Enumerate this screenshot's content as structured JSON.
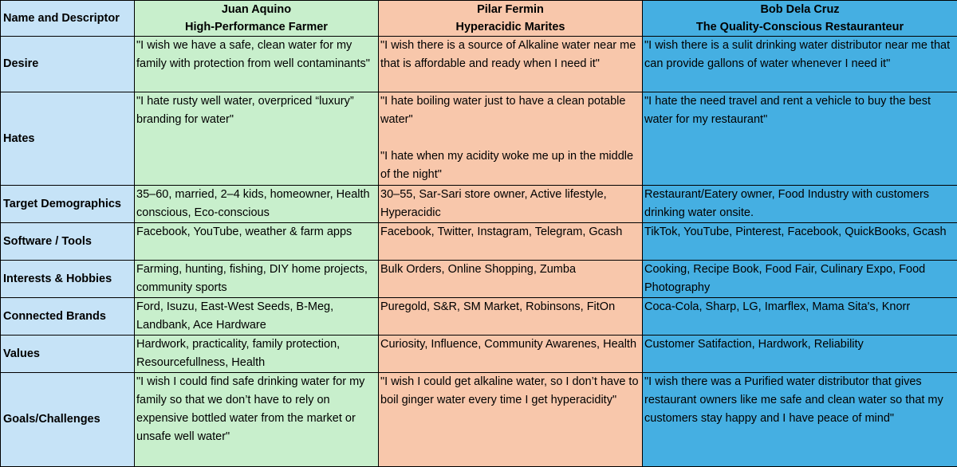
{
  "header": {
    "label": "Name and Descriptor",
    "personas": [
      {
        "name": "Juan Aquino",
        "descriptor": "High-Performance Farmer"
      },
      {
        "name": "Pilar Fermin",
        "descriptor": "Hyperacidic Marites"
      },
      {
        "name": "Bob Dela Cruz",
        "descriptor": "The Quality-Conscious Restauranteur"
      }
    ]
  },
  "colors": {
    "name_column": "#c6e3f7",
    "juan_column": "#c8efcc",
    "pilar_column": "#f8c7ab",
    "bob_column": "#45afe2"
  },
  "rows": {
    "desire": {
      "label": "Desire",
      "juan": "\"I wish we have a safe, clean water for my family  with protection from well contaminants\"",
      "pilar": "\"I wish there is a source of Alkaline water near me that is affordable and ready when I need it\"",
      "bob": "\"I wish there is a sulit drinking water distributor near me that can provide gallons of water whenever I need it\""
    },
    "hates": {
      "label": "Hates",
      "juan": "\"I hate rusty well water, overpriced “luxury” branding for water\"",
      "pilar_1": "\"I hate boiling water just to have a clean potable water\"",
      "pilar_2": "\"I hate when my acidity woke me up in the middle of the night\"",
      "bob": "\"I hate the need travel and rent a vehicle to buy the best water for my restaurant\""
    },
    "demographics": {
      "label": "Target Demographics",
      "juan": "35–60, married, 2–4 kids, homeowner, Health conscious, Eco-conscious",
      "pilar": "30–55, Sar-Sari store owner, Active lifestyle, Hyperacidic",
      "bob": "Restaurant/Eatery owner, Food Industry with customers drinking water onsite."
    },
    "software": {
      "label": "Software / Tools",
      "juan": "Facebook, YouTube, weather & farm apps",
      "pilar": "Facebook, Twitter, Instagram, Telegram, Gcash",
      "bob": "TikTok, YouTube, Pinterest, Facebook, QuickBooks, Gcash"
    },
    "interests": {
      "label": "Interests & Hobbies",
      "juan": "Farming, hunting, fishing, DIY home projects, community sports",
      "pilar": "Bulk Orders, Online Shopping, Zumba",
      "bob": "Cooking, Recipe Book, Food Fair, Culinary Expo, Food Photography"
    },
    "brands": {
      "label": "Connected Brands",
      "juan": "Ford, Isuzu, East-West Seeds, B-Meg, Landbank, Ace Hardware",
      "pilar": "Puregold, S&R, SM Market, Robinsons, FitOn",
      "bob": "Coca-Cola, Sharp, LG, Imarflex, Mama Sita's, Knorr"
    },
    "values": {
      "label": "Values",
      "juan": "Hardwork, practicality, family protection, Resourcefullness, Health",
      "pilar": "Curiosity, Influence, Community Awarenes, Health",
      "bob": "Customer Satifaction, Hardwork, Reliability"
    },
    "goals": {
      "label": "Goals/Challenges",
      "juan": "\"I wish I could find safe drinking water for my family so that we don’t have to rely on expensive bottled water from the market or unsafe well water\"",
      "pilar": "\"I wish I could get alkaline water, so I don’t have to boil ginger water every time I get hyperacidity\"",
      "bob": "\"I wish there was a Purified water distributor that gives restaurant owners like me safe and clean water so that my customers stay happy and I have peace of mind\""
    }
  }
}
